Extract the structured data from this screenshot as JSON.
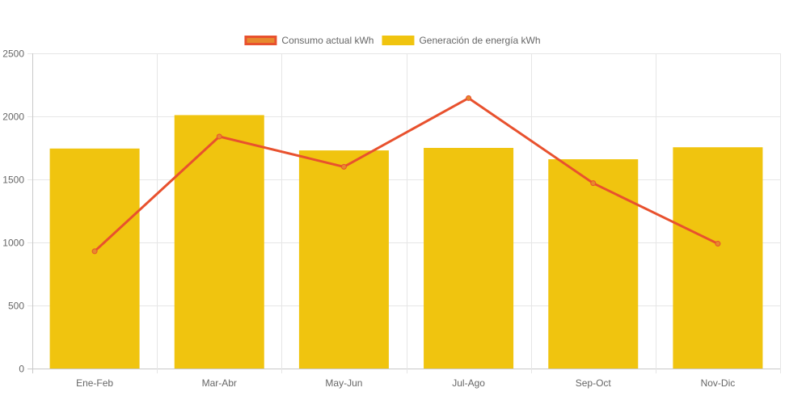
{
  "chart_data": {
    "type": "bar",
    "title": "",
    "xlabel": "",
    "ylabel": "",
    "categories": [
      "Ene-Feb",
      "Mar-Abr",
      "May-Jun",
      "Jul-Ago",
      "Sep-Oct",
      "Nov-Dic"
    ],
    "ylim": [
      0,
      2500
    ],
    "yticks": [
      "0",
      "500",
      "1000",
      "1500",
      "2000",
      "2500"
    ],
    "grid": true,
    "legend_position": "top-center",
    "series": [
      {
        "name": "Consumo actual kWh",
        "type": "line",
        "color": "#e8512e",
        "fill_color": "#e6892e",
        "values": [
          930,
          1840,
          1600,
          2145,
          1470,
          990
        ]
      },
      {
        "name": "Generación de energía kWh",
        "type": "bar",
        "color": "#f0c40f",
        "values": [
          1745,
          2010,
          1730,
          1750,
          1660,
          1755
        ]
      }
    ]
  }
}
